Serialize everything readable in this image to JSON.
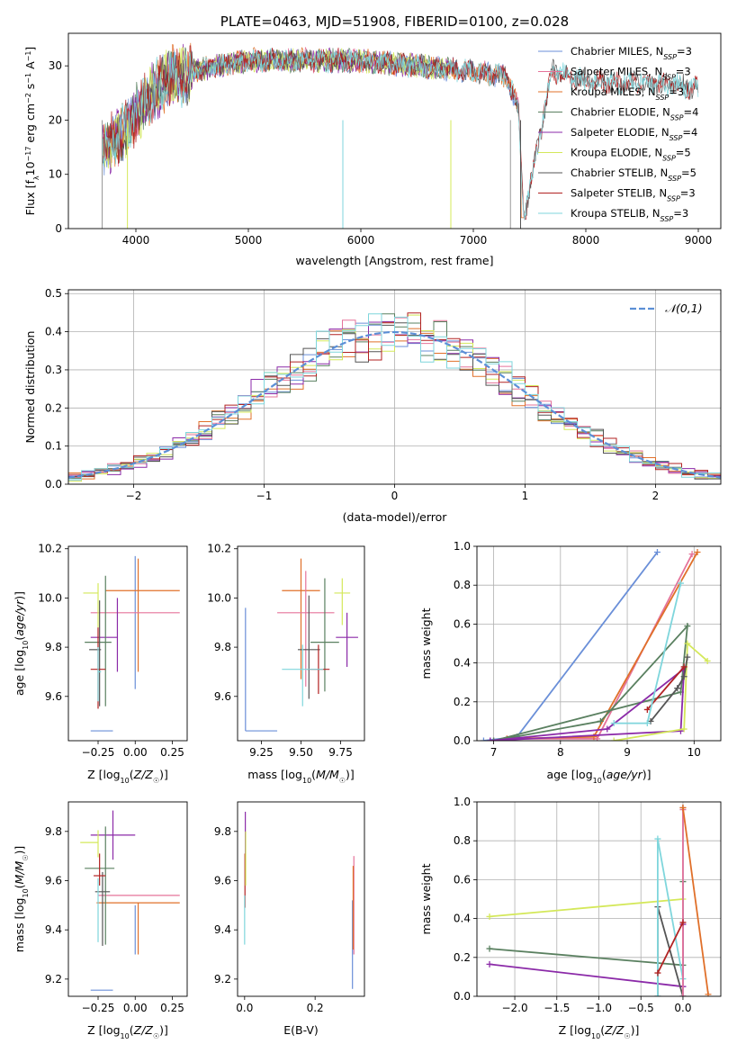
{
  "chart_data": [
    {
      "id": "spectrum",
      "type": "line",
      "title": "PLATE=0463, MJD=51908, FIBERID=0100, z=0.028",
      "xlabel": "wavelength [Angstrom, rest frame]",
      "ylabel": "Flux [f_λ 10^-17 erg cm^-2 s^-1 A^-1]",
      "xlim": [
        3400,
        9200
      ],
      "ylim": [
        0,
        36
      ],
      "xticks": [
        4000,
        5000,
        6000,
        7000,
        8000,
        9000
      ],
      "yticks": [
        0,
        10,
        20,
        30
      ],
      "grid": false,
      "legend_position": "top-right",
      "series": [
        {
          "name": "Chabrier MILES, N_SSP=3",
          "color": "#6a8fd8",
          "xrange": [
            3700,
            7420
          ]
        },
        {
          "name": "Salpeter MILES, N_SSP=3",
          "color": "#e5739a",
          "xrange": [
            3700,
            7420
          ]
        },
        {
          "name": "Kroupa MILES, N_SSP=3",
          "color": "#e0702a",
          "xrange": [
            3700,
            7450
          ]
        },
        {
          "name": "Chabrier ELODIE, N_SSP=4",
          "color": "#5a8060",
          "xrange": [
            3700,
            6800
          ]
        },
        {
          "name": "Salpeter ELODIE, N_SSP=4",
          "color": "#8b2aa8",
          "xrange": [
            3700,
            6800
          ]
        },
        {
          "name": "Kroupa ELODIE, N_SSP=5",
          "color": "#d4e85a",
          "xrange": [
            3700,
            6800
          ]
        },
        {
          "name": "Chabrier STELIB, N_SSP=5",
          "color": "#555555",
          "xrange": [
            3700,
            9000
          ]
        },
        {
          "name": "Salpeter STELIB, N_SSP=3",
          "color": "#b22222",
          "xrange": [
            3700,
            9000
          ]
        },
        {
          "name": "Kroupa STELIB, N_SSP=3",
          "color": "#7fd6dc",
          "xrange": [
            3700,
            9000
          ]
        }
      ],
      "continuum": {
        "x": [
          3700,
          3800,
          3900,
          4000,
          4100,
          4200,
          4300,
          4400,
          4500,
          4700,
          5000,
          5500,
          6000,
          6500,
          7000,
          7300,
          7400,
          7450,
          7700,
          8000,
          8500,
          9000
        ],
        "y": [
          15,
          16,
          18,
          21,
          24,
          26,
          28,
          28,
          29,
          30,
          31,
          31,
          31,
          30,
          29,
          28,
          22,
          2,
          29,
          27,
          27,
          26
        ]
      }
    },
    {
      "id": "residuals",
      "type": "histogram",
      "xlabel": "(data-model)/error",
      "ylabel": "Normed distribution",
      "xlim": [
        -2.5,
        2.5
      ],
      "ylim": [
        0,
        0.51
      ],
      "xticks": [
        -2,
        -1,
        0,
        1,
        2
      ],
      "yticks": [
        0.0,
        0.1,
        0.2,
        0.3,
        0.4,
        0.5
      ],
      "grid": true,
      "legend_position": "top-right",
      "reference_curve": {
        "name": "𝒩(0,1)",
        "color": "#5b8fd6",
        "style": "dashed",
        "mean": 0,
        "sigma": 1
      },
      "bin_width": 0.1,
      "bin_start": -2.5
    },
    {
      "id": "Z_age",
      "type": "errorbar",
      "xlabel": "Z [log10(Z/Z☉)]",
      "ylabel": "age [log10(age/yr)]",
      "xlim": [
        -0.45,
        0.35
      ],
      "ylim": [
        9.42,
        10.21
      ],
      "xticks": [
        -0.25,
        0.0,
        0.25
      ],
      "xtick_labels": [
        "−0.25",
        "0.00",
        "0.25"
      ],
      "yticks": [
        9.6,
        9.8,
        10.0,
        10.2
      ],
      "grid": false,
      "points": [
        {
          "x": -0.15,
          "xerr": [
            0.15,
            0.0
          ],
          "y": 9.46,
          "yerr": [
            0.0,
            0.0
          ],
          "color": "#6a8fd8"
        },
        {
          "x": 0.0,
          "xerr": [
            0.0,
            0.0
          ],
          "y": 9.85,
          "yerr": [
            0.22,
            0.32
          ],
          "color": "#6a8fd8"
        },
        {
          "x": 0.02,
          "xerr": [
            0.22,
            0.28
          ],
          "y": 10.03,
          "yerr": [
            0.33,
            0.13
          ],
          "color": "#e0702a"
        },
        {
          "x": -0.1,
          "xerr": [
            0.2,
            0.4
          ],
          "y": 9.94,
          "yerr": [
            0.0,
            0.0
          ],
          "color": "#e5739a"
        },
        {
          "x": -0.12,
          "xerr": [
            0.18,
            0.0
          ],
          "y": 9.84,
          "yerr": [
            0.14,
            0.16
          ],
          "color": "#8b2aa8"
        },
        {
          "x": -0.2,
          "xerr": [
            0.14,
            0.04
          ],
          "y": 9.82,
          "yerr": [
            0.26,
            0.27
          ],
          "color": "#5a8060"
        },
        {
          "x": -0.25,
          "xerr": [
            0.1,
            0.0
          ],
          "y": 10.02,
          "yerr": [
            0.14,
            0.04
          ],
          "color": "#d4e85a"
        },
        {
          "x": -0.24,
          "xerr": [
            0.07,
            0.01
          ],
          "y": 9.79,
          "yerr": [
            0.23,
            0.2
          ],
          "color": "#555555"
        },
        {
          "x": -0.25,
          "xerr": [
            0.05,
            0.05
          ],
          "y": 9.71,
          "yerr": [
            0.16,
            0.17
          ],
          "color": "#b22222"
        },
        {
          "x": -0.25,
          "xerr": [
            0.0,
            0.02
          ],
          "y": 9.7,
          "yerr": [
            0.12,
            0.1
          ],
          "color": "#7fd6dc"
        }
      ]
    },
    {
      "id": "mass_age",
      "type": "errorbar",
      "xlabel": "mass [log10(M/M☉)]",
      "ylabel": "",
      "xlim": [
        9.1,
        9.9
      ],
      "ylim": [
        9.42,
        10.21
      ],
      "xticks": [
        9.25,
        9.5,
        9.75
      ],
      "xtick_labels": [
        "9.25",
        "9.50",
        "9.75"
      ],
      "yticks": [
        9.6,
        9.8,
        10.0,
        10.2
      ],
      "grid": false,
      "points": [
        {
          "x": 9.15,
          "xerr": [
            0.0,
            0.2
          ],
          "y": 9.46,
          "yerr": [
            0.0,
            0.5
          ],
          "color": "#6a8fd8"
        },
        {
          "x": 9.5,
          "xerr": [
            0.12,
            0.12
          ],
          "y": 10.03,
          "yerr": [
            0.36,
            0.13
          ],
          "color": "#e0702a"
        },
        {
          "x": 9.53,
          "xerr": [
            0.18,
            0.18
          ],
          "y": 9.94,
          "yerr": [
            0.3,
            0.17
          ],
          "color": "#e5739a"
        },
        {
          "x": 9.79,
          "xerr": [
            0.07,
            0.07
          ],
          "y": 9.84,
          "yerr": [
            0.12,
            0.1
          ],
          "color": "#8b2aa8"
        },
        {
          "x": 9.65,
          "xerr": [
            0.09,
            0.09
          ],
          "y": 9.82,
          "yerr": [
            0.2,
            0.26
          ],
          "color": "#5a8060"
        },
        {
          "x": 9.76,
          "xerr": [
            0.05,
            0.05
          ],
          "y": 10.02,
          "yerr": [
            0.13,
            0.06
          ],
          "color": "#d4e85a"
        },
        {
          "x": 9.55,
          "xerr": [
            0.07,
            0.07
          ],
          "y": 9.79,
          "yerr": [
            0.2,
            0.22
          ],
          "color": "#555555"
        },
        {
          "x": 9.61,
          "xerr": [
            0.07,
            0.07
          ],
          "y": 9.71,
          "yerr": [
            0.1,
            0.1
          ],
          "color": "#b22222"
        },
        {
          "x": 9.51,
          "xerr": [
            0.13,
            0.13
          ],
          "y": 9.71,
          "yerr": [
            0.15,
            0.1
          ],
          "color": "#7fd6dc"
        }
      ]
    },
    {
      "id": "weight_age",
      "type": "line",
      "xlabel": "age [log10(age/yr)]",
      "ylabel": "mass weight",
      "xlim": [
        6.75,
        10.4
      ],
      "ylim": [
        0,
        1
      ],
      "xticks": [
        7,
        8,
        9,
        10
      ],
      "yticks": [
        0.0,
        0.2,
        0.4,
        0.6,
        0.8,
        1.0
      ],
      "grid": true,
      "series": [
        {
          "color": "#6a8fd8",
          "x": [
            6.85,
            7.35,
            9.45
          ],
          "y": [
            0.0,
            0.02,
            0.97
          ]
        },
        {
          "color": "#e5739a",
          "x": [
            7.2,
            8.55,
            9.97
          ],
          "y": [
            0.01,
            0.01,
            0.96
          ]
        },
        {
          "color": "#e0702a",
          "x": [
            7.2,
            8.5,
            10.05
          ],
          "y": [
            0.01,
            0.02,
            0.97
          ]
        },
        {
          "color": "#5a8060",
          "x": [
            7.0,
            9.8,
            9.9,
            8.6,
            7.0
          ],
          "y": [
            0.0,
            0.25,
            0.59,
            0.1,
            0.0
          ]
        },
        {
          "color": "#8b2aa8",
          "x": [
            6.95,
            9.8,
            9.85,
            8.7,
            6.95
          ],
          "y": [
            0.0,
            0.05,
            0.37,
            0.06,
            0.0
          ]
        },
        {
          "color": "#d4e85a",
          "x": [
            8.8,
            9.85,
            9.9,
            10.2
          ],
          "y": [
            0.0,
            0.06,
            0.5,
            0.41
          ]
        },
        {
          "color": "#555555",
          "x": [
            9.35,
            9.75,
            9.85,
            9.9
          ],
          "y": [
            0.1,
            0.27,
            0.33,
            0.43
          ]
        },
        {
          "color": "#b22222",
          "x": [
            9.3,
            9.85
          ],
          "y": [
            0.16,
            0.38
          ]
        },
        {
          "color": "#7fd6dc",
          "x": [
            8.8,
            9.3,
            9.8
          ],
          "y": [
            0.09,
            0.09,
            0.81
          ]
        }
      ]
    },
    {
      "id": "Z_mass",
      "type": "errorbar",
      "xlabel": "Z [log10(Z/Z☉)]",
      "ylabel": "mass [log10(M/M☉)]",
      "xlim": [
        -0.45,
        0.35
      ],
      "ylim": [
        9.13,
        9.92
      ],
      "xticks": [
        -0.25,
        0.0,
        0.25
      ],
      "xtick_labels": [
        "−0.25",
        "0.00",
        "0.25"
      ],
      "yticks": [
        9.2,
        9.4,
        9.6,
        9.8
      ],
      "grid": false,
      "points": [
        {
          "x": -0.15,
          "xerr": [
            0.15,
            0.0
          ],
          "y": 9.155,
          "yerr": [
            0.0,
            0.0
          ],
          "color": "#6a8fd8"
        },
        {
          "x": 0.0,
          "xerr": [
            0.0,
            0.0
          ],
          "y": 9.4,
          "yerr": [
            0.1,
            0.1
          ],
          "color": "#6a8fd8"
        },
        {
          "x": 0.02,
          "xerr": [
            0.28,
            0.28
          ],
          "y": 9.51,
          "yerr": [
            0.21,
            0.0
          ],
          "color": "#e0702a"
        },
        {
          "x": -0.05,
          "xerr": [
            0.2,
            0.35
          ],
          "y": 9.54,
          "yerr": [
            0.0,
            0.0
          ],
          "color": "#e5739a"
        },
        {
          "x": -0.15,
          "xerr": [
            0.15,
            0.15
          ],
          "y": 9.785,
          "yerr": [
            0.1,
            0.1
          ],
          "color": "#8b2aa8"
        },
        {
          "x": -0.2,
          "xerr": [
            0.14,
            0.06
          ],
          "y": 9.65,
          "yerr": [
            0.31,
            0.17
          ],
          "color": "#5a8060"
        },
        {
          "x": -0.25,
          "xerr": [
            0.12,
            0.0
          ],
          "y": 9.755,
          "yerr": [
            0.06,
            0.05
          ],
          "color": "#d4e85a"
        },
        {
          "x": -0.22,
          "xerr": [
            0.05,
            0.05
          ],
          "y": 9.555,
          "yerr": [
            0.22,
            0.08
          ],
          "color": "#555555"
        },
        {
          "x": -0.24,
          "xerr": [
            0.04,
            0.04
          ],
          "y": 9.62,
          "yerr": [
            0.04,
            0.09
          ],
          "color": "#b22222"
        },
        {
          "x": -0.25,
          "xerr": [
            0.0,
            0.0
          ],
          "y": 9.51,
          "yerr": [
            0.16,
            0.1
          ],
          "color": "#7fd6dc"
        }
      ]
    },
    {
      "id": "ebv_mass",
      "type": "errorbar",
      "xlabel": "E(B-V)",
      "ylabel": "",
      "xlim": [
        -0.02,
        0.34
      ],
      "ylim": [
        9.13,
        9.92
      ],
      "xticks": [
        0.0,
        0.2
      ],
      "xtick_labels": [
        "0.0",
        "0.2"
      ],
      "yticks": [
        9.2,
        9.4,
        9.6,
        9.8
      ],
      "grid": false,
      "points": [
        {
          "x": 0.306,
          "xerr": [
            0.0,
            0.0
          ],
          "y": 9.42,
          "yerr": [
            0.26,
            0.1
          ],
          "color": "#6a8fd8"
        },
        {
          "x": 0.31,
          "xerr": [
            0.0,
            0.0
          ],
          "y": 9.5,
          "yerr": [
            0.2,
            0.2
          ],
          "color": "#e5739a"
        },
        {
          "x": 0.308,
          "xerr": [
            0.0,
            0.0
          ],
          "y": 9.48,
          "yerr": [
            0.16,
            0.18
          ],
          "color": "#e0702a"
        },
        {
          "x": 0.002,
          "xerr": [
            0.0,
            0.0
          ],
          "y": 9.78,
          "yerr": [
            0.1,
            0.1
          ],
          "color": "#8b2aa8"
        },
        {
          "x": 0.001,
          "xerr": [
            0.0,
            0.0
          ],
          "y": 9.61,
          "yerr": [
            0.12,
            0.1
          ],
          "color": "#b22222"
        },
        {
          "x": 0.0,
          "xerr": [
            0.0,
            0.0
          ],
          "y": 9.46,
          "yerr": [
            0.12,
            0.08
          ],
          "color": "#7fd6dc"
        },
        {
          "x": 0.003,
          "xerr": [
            0.0,
            0.0
          ],
          "y": 9.7,
          "yerr": [
            0.12,
            0.1
          ],
          "color": "#d4e85a"
        }
      ]
    },
    {
      "id": "weight_Z",
      "type": "line",
      "xlabel": "Z [log10(Z/Z☉)]",
      "ylabel": "mass weight",
      "xlim": [
        -2.45,
        0.45
      ],
      "ylim": [
        0,
        1
      ],
      "xticks": [
        -2.0,
        -1.5,
        -1.0,
        -0.5,
        0.0
      ],
      "xtick_labels": [
        "−2.0",
        "−1.5",
        "−1.0",
        "−0.5",
        "0.0"
      ],
      "yticks": [
        0.0,
        0.2,
        0.4,
        0.6,
        0.8,
        1.0
      ],
      "grid": true,
      "series": [
        {
          "color": "#d4e85a",
          "x": [
            -2.3,
            0.0
          ],
          "y": [
            0.41,
            0.5
          ]
        },
        {
          "color": "#5a8060",
          "x": [
            -2.3,
            0.0,
            0.0
          ],
          "y": [
            0.245,
            0.16,
            0.59
          ]
        },
        {
          "color": "#8b2aa8",
          "x": [
            -2.3,
            0.0,
            0.0
          ],
          "y": [
            0.165,
            0.05,
            0.37
          ]
        },
        {
          "color": "#555555",
          "x": [
            -0.3,
            -0.3,
            0.0
          ],
          "y": [
            0.0,
            0.46,
            0.0
          ]
        },
        {
          "color": "#7fd6dc",
          "x": [
            -0.3,
            -0.3,
            0.0
          ],
          "y": [
            0.0,
            0.81,
            0.09
          ]
        },
        {
          "color": "#6a8fd8",
          "x": [
            0.0,
            0.0
          ],
          "y": [
            0.0,
            0.97
          ]
        },
        {
          "color": "#e5739a",
          "x": [
            0.0,
            0.0
          ],
          "y": [
            0.0,
            0.96
          ]
        },
        {
          "color": "#b22222",
          "x": [
            -0.3,
            0.0
          ],
          "y": [
            0.12,
            0.38
          ]
        },
        {
          "color": "#e0702a",
          "x": [
            0.0,
            0.3,
            0.0
          ],
          "y": [
            0.97,
            0.01,
            0.97
          ]
        }
      ]
    }
  ]
}
